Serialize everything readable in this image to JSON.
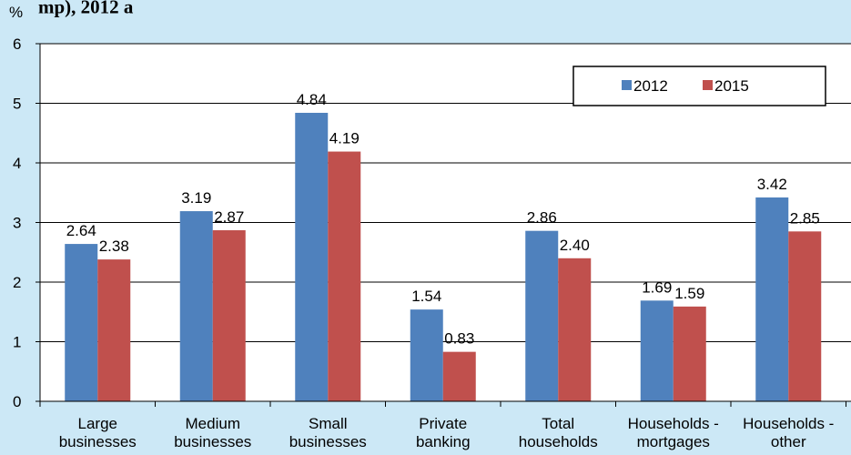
{
  "header": {
    "title_fragment": "mp), 2012 a"
  },
  "chart_data": {
    "type": "bar",
    "ylabel": "%",
    "ylim": [
      0,
      6
    ],
    "yticks": [
      "0",
      "1",
      "2",
      "3",
      "4",
      "5",
      "6"
    ],
    "grid": true,
    "legend_placement": "top-right",
    "categories": [
      [
        "Large",
        "businesses"
      ],
      [
        "Medium",
        "businesses"
      ],
      [
        "Small",
        "businesses"
      ],
      [
        "Private",
        "banking"
      ],
      [
        "Total",
        "households"
      ],
      [
        "Households -",
        "mortgages"
      ],
      [
        "Households -",
        "other"
      ]
    ],
    "series": [
      {
        "name": "2012",
        "color": "#4f81bd",
        "values": [
          2.64,
          3.19,
          4.84,
          1.54,
          2.86,
          1.69,
          3.42
        ],
        "labels": [
          "2.64",
          "3.19",
          "4.84",
          "1.54",
          "2.86",
          "1.69",
          "3.42"
        ]
      },
      {
        "name": "2015",
        "color": "#c0504d",
        "values": [
          2.38,
          2.87,
          4.19,
          0.83,
          2.4,
          1.59,
          2.85
        ],
        "labels": [
          "2.38",
          "2.87",
          "4.19",
          "0.83",
          "2.40",
          "1.59",
          "2.85"
        ]
      }
    ]
  }
}
